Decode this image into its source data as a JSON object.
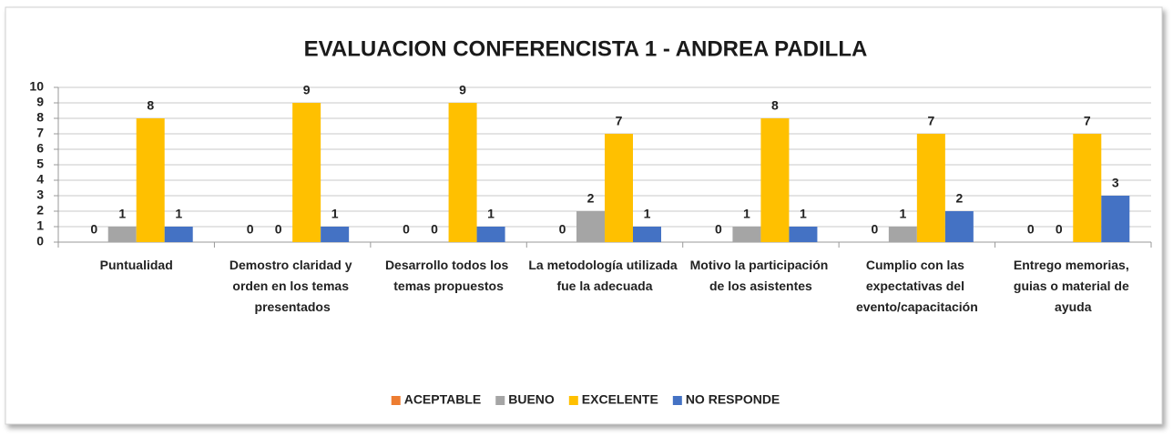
{
  "chart_data": {
    "type": "bar",
    "title": "EVALUACION CONFERENCISTA 1 - ANDREA PADILLA",
    "categories": [
      "Puntualidad",
      "Demostro claridad y orden en los temas presentados",
      "Desarrollo todos los temas propuestos",
      "La metodología utilizada fue la adecuada",
      "Motivo la participación de los asistentes",
      "Cumplio con las expectativas del evento/capacitación",
      "Entrego memorias, guias o material de ayuda"
    ],
    "series": [
      {
        "name": "ACEPTABLE",
        "color": "#ed7d31",
        "values": [
          0,
          0,
          0,
          0,
          0,
          0,
          0
        ]
      },
      {
        "name": "BUENO",
        "color": "#a5a5a5",
        "values": [
          1,
          0,
          0,
          2,
          1,
          1,
          0
        ]
      },
      {
        "name": "EXCELENTE",
        "color": "#ffc000",
        "values": [
          8,
          9,
          9,
          7,
          8,
          7,
          7
        ]
      },
      {
        "name": "NO RESPONDE",
        "color": "#4472c4",
        "values": [
          1,
          1,
          1,
          1,
          1,
          2,
          3
        ]
      }
    ],
    "ylim": [
      0,
      10
    ],
    "yticks": [
      0,
      1,
      2,
      3,
      4,
      5,
      6,
      7,
      8,
      9,
      10
    ],
    "grid": true,
    "legend": "bottom"
  }
}
